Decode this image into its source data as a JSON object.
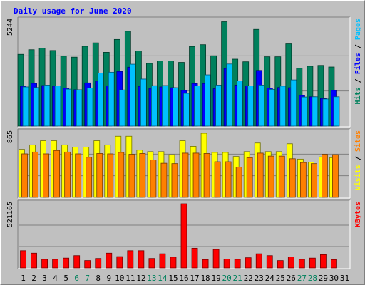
{
  "chart_data": {
    "type": "bar",
    "title": "Daily usage for June 2020",
    "title_color": "#0000ff",
    "categories": [
      "1",
      "2",
      "3",
      "4",
      "5",
      "6",
      "7",
      "8",
      "9",
      "10",
      "11",
      "12",
      "13",
      "14",
      "15",
      "16",
      "17",
      "18",
      "19",
      "20",
      "21",
      "22",
      "23",
      "24",
      "25",
      "26",
      "27",
      "28",
      "29",
      "30",
      "31"
    ],
    "weekend_days": [
      "6",
      "7",
      "13",
      "14",
      "20",
      "21",
      "27",
      "28"
    ],
    "weekend_color": "#00805c",
    "weekday_color": "#000000",
    "panels": [
      {
        "name": "hits-files-pages",
        "ymax": 5244,
        "ymax_label": "5244",
        "right_labels": [
          {
            "text": "Hits",
            "color": "#00805c"
          },
          {
            "text": " / ",
            "color": "#000000"
          },
          {
            "text": "Files",
            "color": "#0000ff"
          },
          {
            "text": " / ",
            "color": "#000000"
          },
          {
            "text": "Pages",
            "color": "#00c0ff"
          }
        ],
        "series": [
          {
            "name": "Hits",
            "color": "#00805c",
            "values": [
              3570,
              3800,
              3880,
              3760,
              3480,
              3430,
              3970,
              4140,
              3670,
              4310,
              4720,
              3740,
              3120,
              3240,
              3240,
              3170,
              3960,
              4050,
              3500,
              5190,
              3330,
              3200,
              4810,
              3450,
              3450,
              4090,
              2880,
              2980,
              3020,
              2940,
              null
            ]
          },
          {
            "name": "Files",
            "color": "#0000ff",
            "values": [
              1990,
              2130,
              2020,
              1990,
              1890,
              1810,
              2150,
              2240,
              2000,
              2720,
              2930,
              1980,
              1880,
              1950,
              1910,
              1780,
              2120,
              2120,
              1860,
              2870,
              2040,
              2000,
              2770,
              1890,
              1920,
              1910,
              1530,
              1460,
              1380,
              1780,
              null
            ]
          },
          {
            "name": "Pages",
            "color": "#00c0ff",
            "values": [
              1950,
              1920,
              2040,
              2000,
              1840,
              1810,
              1900,
              2640,
              2680,
              1800,
              3080,
              2340,
              2010,
              2020,
              1910,
              1630,
              2000,
              2550,
              2040,
              3090,
              2250,
              2000,
              2040,
              1830,
              1990,
              2300,
              1450,
              1460,
              1350,
              1460,
              null
            ]
          }
        ]
      },
      {
        "name": "visits-sites",
        "ymax": 865,
        "ymax_label": "865",
        "right_labels": [
          {
            "text": "Visits",
            "color": "#ffff00"
          },
          {
            "text": " / ",
            "color": "#000000"
          },
          {
            "text": "Sites",
            "color": "#ff8000"
          }
        ],
        "series": [
          {
            "name": "Visits",
            "color": "#ffff00",
            "values": [
              640,
              700,
              755,
              755,
              700,
              670,
              670,
              755,
              700,
              815,
              815,
              630,
              610,
              610,
              570,
              755,
              680,
              855,
              600,
              600,
              545,
              610,
              725,
              610,
              610,
              715,
              510,
              470,
              540,
              530,
              null
            ]
          },
          {
            "name": "Sites",
            "color": "#ff8000",
            "values": [
              580,
              605,
              580,
              625,
              605,
              580,
              535,
              585,
              580,
              600,
              575,
              585,
              500,
              455,
              450,
              590,
              590,
              585,
              475,
              475,
              405,
              530,
              590,
              550,
              550,
              515,
              465,
              450,
              575,
              570,
              null
            ]
          }
        ]
      },
      {
        "name": "kbytes",
        "ymax": 521165,
        "ymax_label": "521165",
        "right_labels": [
          {
            "text": "KBytes",
            "color": "#ff0000"
          }
        ],
        "series": [
          {
            "name": "KBytes",
            "color": "#ff0000",
            "values": [
              140000,
              120000,
              70000,
              70000,
              80000,
              100000,
              60000,
              77000,
              120000,
              92000,
              140000,
              140000,
              77000,
              115000,
              88000,
              521000,
              160000,
              68000,
              150000,
              72000,
              70000,
              83000,
              115000,
              100000,
              60000,
              90000,
              70000,
              80000,
              108000,
              68000,
              null
            ]
          }
        ]
      }
    ]
  }
}
